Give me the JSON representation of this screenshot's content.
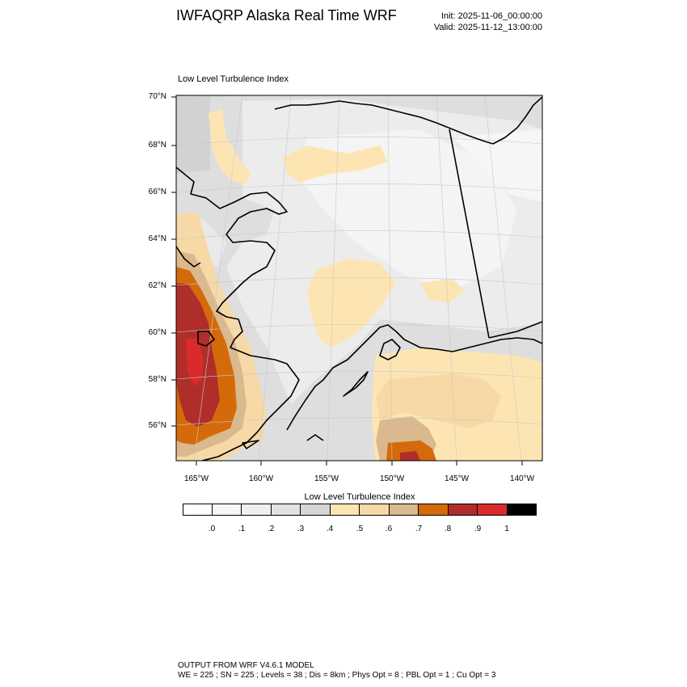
{
  "header": {
    "title": "IWFAQRP Alaska Real Time WRF",
    "init": "Init: 2025-11-06_00:00:00",
    "valid": "Valid: 2025-11-12_13:00:00"
  },
  "map": {
    "subtitle": "Low Level Turbulence Index",
    "lat_labels": [
      "70°N",
      "68°N",
      "66°N",
      "64°N",
      "62°N",
      "60°N",
      "58°N",
      "56°N"
    ],
    "lon_labels": [
      "165°W",
      "160°W",
      "155°W",
      "150°W",
      "145°W",
      "140°W"
    ]
  },
  "colorbar": {
    "title": "Low Level Turbulence Index",
    "labels": [
      ".0",
      ".1",
      ".2",
      ".3",
      ".4",
      ".5",
      ".6",
      ".7",
      ".8",
      ".9",
      "1"
    ],
    "colors": [
      "#ffffff",
      "#f7f7f7",
      "#efefef",
      "#e2e2e2",
      "#d5d5d5",
      "#fde5b3",
      "#f7d9a7",
      "#d9b98d",
      "#d56a0a",
      "#b02e2a",
      "#d92b2b",
      "#000000"
    ]
  },
  "footer": {
    "line1": "OUTPUT FROM WRF V4.6.1 MODEL",
    "line2": "WE = 225 ; SN = 225 ; Levels = 38 ; Dis = 8km ; Phys Opt = 8 ; PBL Opt = 1 ; Cu Opt = 3"
  }
}
